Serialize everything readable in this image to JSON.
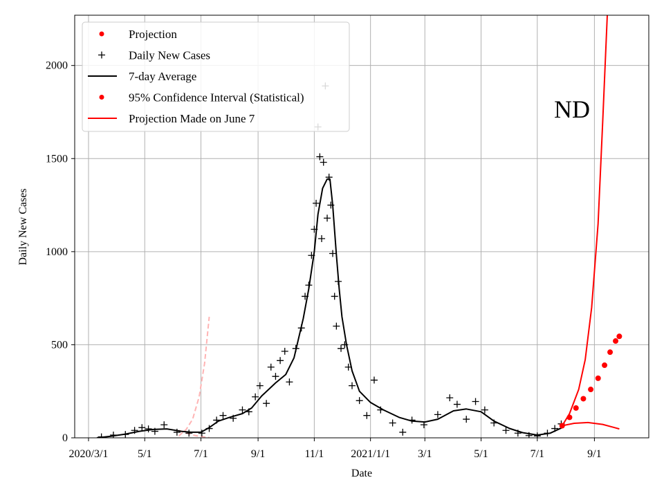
{
  "chart_data": {
    "type": "line",
    "xlabel": "Date",
    "ylabel": "Daily New Cases",
    "annotation": "ND",
    "x_ticks": [
      {
        "date": "2020-03-01",
        "label": "2020/3/1"
      },
      {
        "date": "2020-05-01",
        "label": "5/1"
      },
      {
        "date": "2020-07-01",
        "label": "7/1"
      },
      {
        "date": "2020-09-01",
        "label": "9/1"
      },
      {
        "date": "2020-11-01",
        "label": "11/1"
      },
      {
        "date": "2021-01-01",
        "label": "2021/1/1"
      },
      {
        "date": "2021-03-01",
        "label": "3/1"
      },
      {
        "date": "2021-05-01",
        "label": "5/1"
      },
      {
        "date": "2021-07-01",
        "label": "7/1"
      },
      {
        "date": "2021-09-01",
        "label": "9/1"
      }
    ],
    "y_ticks": [
      0,
      500,
      1000,
      1500,
      2000
    ],
    "xlim": [
      "2020-02-15",
      "2021-10-30"
    ],
    "ylim": [
      0,
      2270
    ],
    "grid": true,
    "legend_position": "upper-left",
    "legend": [
      {
        "label": "Projection",
        "marker": "dot",
        "color": "#ff0000"
      },
      {
        "label": "Daily New Cases",
        "marker": "plus",
        "color": "#000000"
      },
      {
        "label": "7-day Average",
        "marker": "line",
        "color": "#000000"
      },
      {
        "label": "95% Confidence Interval (Statistical)",
        "marker": "dot",
        "color": "#ff0000"
      },
      {
        "label": "Projection Made on June 7",
        "marker": "line",
        "color": "#ff0000"
      }
    ],
    "seven_day_average": {
      "name": "7-day Average",
      "color": "#000000",
      "points": [
        [
          "2020-03-10",
          0
        ],
        [
          "2020-03-25",
          8
        ],
        [
          "2020-04-10",
          20
        ],
        [
          "2020-04-25",
          35
        ],
        [
          "2020-05-10",
          45
        ],
        [
          "2020-05-25",
          48
        ],
        [
          "2020-06-10",
          35
        ],
        [
          "2020-06-20",
          30
        ],
        [
          "2020-07-01",
          30
        ],
        [
          "2020-07-10",
          55
        ],
        [
          "2020-07-20",
          90
        ],
        [
          "2020-08-01",
          110
        ],
        [
          "2020-08-15",
          130
        ],
        [
          "2020-08-25",
          160
        ],
        [
          "2020-09-05",
          225
        ],
        [
          "2020-09-20",
          295
        ],
        [
          "2020-10-01",
          340
        ],
        [
          "2020-10-10",
          430
        ],
        [
          "2020-10-20",
          640
        ],
        [
          "2020-10-26",
          800
        ],
        [
          "2020-11-01",
          1000
        ],
        [
          "2020-11-05",
          1200
        ],
        [
          "2020-11-10",
          1340
        ],
        [
          "2020-11-15",
          1390
        ],
        [
          "2020-11-18",
          1390
        ],
        [
          "2020-11-21",
          1250
        ],
        [
          "2020-11-25",
          980
        ],
        [
          "2020-11-28",
          800
        ],
        [
          "2020-12-01",
          650
        ],
        [
          "2020-12-06",
          500
        ],
        [
          "2020-12-12",
          360
        ],
        [
          "2020-12-20",
          250
        ],
        [
          "2021-01-01",
          190
        ],
        [
          "2021-01-15",
          150
        ],
        [
          "2021-02-01",
          110
        ],
        [
          "2021-02-15",
          90
        ],
        [
          "2021-03-01",
          85
        ],
        [
          "2021-03-15",
          100
        ],
        [
          "2021-04-01",
          145
        ],
        [
          "2021-04-15",
          155
        ],
        [
          "2021-05-01",
          140
        ],
        [
          "2021-05-15",
          90
        ],
        [
          "2021-06-01",
          50
        ],
        [
          "2021-06-15",
          28
        ],
        [
          "2021-07-01",
          15
        ],
        [
          "2021-07-15",
          25
        ],
        [
          "2021-07-28",
          55
        ]
      ]
    },
    "daily_new_cases": {
      "name": "Daily New Cases",
      "color": "#000000",
      "points": [
        [
          "2020-03-15",
          5
        ],
        [
          "2020-03-28",
          15
        ],
        [
          "2020-04-10",
          18
        ],
        [
          "2020-04-20",
          40
        ],
        [
          "2020-04-28",
          55
        ],
        [
          "2020-05-05",
          48
        ],
        [
          "2020-05-12",
          35
        ],
        [
          "2020-05-22",
          70
        ],
        [
          "2020-06-05",
          30
        ],
        [
          "2020-06-18",
          25
        ],
        [
          "2020-07-02",
          25
        ],
        [
          "2020-07-10",
          50
        ],
        [
          "2020-07-18",
          95
        ],
        [
          "2020-07-25",
          120
        ],
        [
          "2020-08-05",
          105
        ],
        [
          "2020-08-15",
          150
        ],
        [
          "2020-08-22",
          140
        ],
        [
          "2020-08-29",
          220
        ],
        [
          "2020-09-03",
          280
        ],
        [
          "2020-09-10",
          185
        ],
        [
          "2020-09-15",
          380
        ],
        [
          "2020-09-20",
          330
        ],
        [
          "2020-09-25",
          415
        ],
        [
          "2020-09-30",
          465
        ],
        [
          "2020-10-05",
          300
        ],
        [
          "2020-10-12",
          480
        ],
        [
          "2020-10-18",
          590
        ],
        [
          "2020-10-22",
          760
        ],
        [
          "2020-10-26",
          820
        ],
        [
          "2020-10-29",
          980
        ],
        [
          "2020-11-01",
          1120
        ],
        [
          "2020-11-03",
          1260
        ],
        [
          "2020-11-05",
          1670
        ],
        [
          "2020-11-07",
          1510
        ],
        [
          "2020-11-09",
          1070
        ],
        [
          "2020-11-11",
          1480
        ],
        [
          "2020-11-13",
          1890
        ],
        [
          "2020-11-15",
          1180
        ],
        [
          "2020-11-17",
          1400
        ],
        [
          "2020-11-19",
          1250
        ],
        [
          "2020-11-21",
          990
        ],
        [
          "2020-11-23",
          760
        ],
        [
          "2020-11-25",
          600
        ],
        [
          "2020-11-27",
          840
        ],
        [
          "2020-11-30",
          480
        ],
        [
          "2020-12-04",
          500
        ],
        [
          "2020-12-08",
          380
        ],
        [
          "2020-12-12",
          280
        ],
        [
          "2020-12-20",
          200
        ],
        [
          "2020-12-28",
          120
        ],
        [
          "2021-01-05",
          310
        ],
        [
          "2021-01-12",
          150
        ],
        [
          "2021-01-25",
          80
        ],
        [
          "2021-02-05",
          30
        ],
        [
          "2021-02-15",
          95
        ],
        [
          "2021-02-28",
          70
        ],
        [
          "2021-03-15",
          125
        ],
        [
          "2021-03-28",
          215
        ],
        [
          "2021-04-05",
          180
        ],
        [
          "2021-04-15",
          100
        ],
        [
          "2021-04-25",
          195
        ],
        [
          "2021-05-05",
          150
        ],
        [
          "2021-05-15",
          80
        ],
        [
          "2021-05-28",
          40
        ],
        [
          "2021-06-10",
          25
        ],
        [
          "2021-06-22",
          12
        ],
        [
          "2021-07-01",
          10
        ],
        [
          "2021-07-12",
          25
        ],
        [
          "2021-07-20",
          50
        ],
        [
          "2021-07-27",
          75
        ]
      ]
    },
    "projection": {
      "name": "Projection",
      "color": "#ff0000",
      "points": [
        [
          "2021-07-28",
          65
        ],
        [
          "2021-08-05",
          110
        ],
        [
          "2021-08-12",
          160
        ],
        [
          "2021-08-20",
          210
        ],
        [
          "2021-08-28",
          260
        ],
        [
          "2021-09-05",
          320
        ],
        [
          "2021-09-12",
          390
        ],
        [
          "2021-09-18",
          460
        ],
        [
          "2021-09-24",
          520
        ],
        [
          "2021-09-28",
          545
        ]
      ]
    },
    "ci_upper": {
      "color": "#ff0000",
      "points": [
        [
          "2021-07-28",
          65
        ],
        [
          "2021-08-05",
          130
        ],
        [
          "2021-08-15",
          260
        ],
        [
          "2021-08-22",
          420
        ],
        [
          "2021-08-29",
          700
        ],
        [
          "2021-09-05",
          1150
        ],
        [
          "2021-09-10",
          1700
        ],
        [
          "2021-09-15",
          2270
        ]
      ]
    },
    "ci_lower": {
      "color": "#ff0000",
      "points": [
        [
          "2021-07-28",
          65
        ],
        [
          "2021-08-10",
          78
        ],
        [
          "2021-08-25",
          82
        ],
        [
          "2021-09-10",
          72
        ],
        [
          "2021-09-28",
          48
        ]
      ]
    },
    "projection_june7": {
      "name": "Projection Made on June 7",
      "color": "#ffb3b3",
      "upper": [
        [
          "2020-06-07",
          10
        ],
        [
          "2020-06-15",
          45
        ],
        [
          "2020-06-22",
          100
        ],
        [
          "2020-06-29",
          220
        ],
        [
          "2020-07-05",
          400
        ],
        [
          "2020-07-10",
          650
        ]
      ],
      "lower": [
        [
          "2020-06-07",
          40
        ],
        [
          "2020-06-15",
          25
        ],
        [
          "2020-06-25",
          12
        ],
        [
          "2020-07-05",
          5
        ],
        [
          "2020-07-10",
          2
        ]
      ]
    }
  }
}
